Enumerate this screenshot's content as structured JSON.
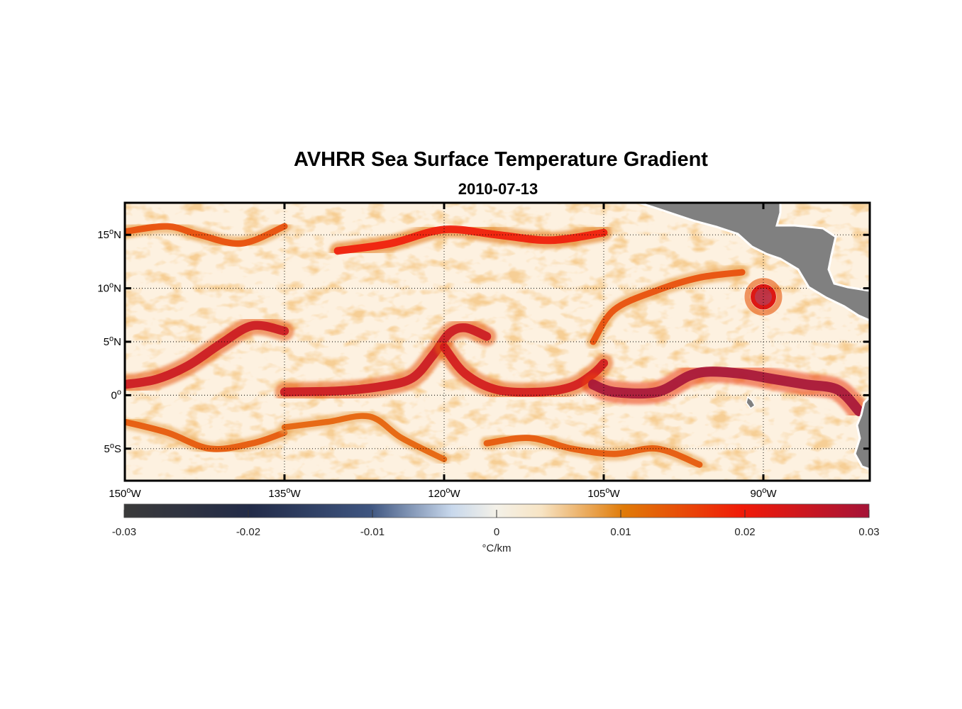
{
  "title": "AVHRR Sea Surface Temperature Gradient",
  "subtitle": "2010-07-13",
  "map": {
    "lon_range": [
      -150,
      -80
    ],
    "lat_range": [
      -8,
      18
    ],
    "lon_ticks": [
      {
        "value": -150,
        "num": "150",
        "deg": "o",
        "hemi": "W"
      },
      {
        "value": -135,
        "num": "135",
        "deg": "o",
        "hemi": "W"
      },
      {
        "value": -120,
        "num": "120",
        "deg": "o",
        "hemi": "W"
      },
      {
        "value": -105,
        "num": "105",
        "deg": "o",
        "hemi": "W"
      },
      {
        "value": -90,
        "num": "90",
        "deg": "o",
        "hemi": "W"
      }
    ],
    "lat_ticks": [
      {
        "value": 15,
        "num": "15",
        "deg": "o",
        "hemi": "N"
      },
      {
        "value": 10,
        "num": "10",
        "deg": "o",
        "hemi": "N"
      },
      {
        "value": 5,
        "num": "5",
        "deg": "o",
        "hemi": "N"
      },
      {
        "value": 0,
        "num": "0",
        "deg": "o",
        "hemi": ""
      },
      {
        "value": -5,
        "num": "5",
        "deg": "o",
        "hemi": "S"
      }
    ],
    "grid_lines": true,
    "land_color": "#808080",
    "fronts": [
      {
        "id": "equatorial-front",
        "strength": 0.025,
        "path": [
          [
            -150,
            1
          ],
          [
            -147,
            1.5
          ],
          [
            -144,
            2.8
          ],
          [
            -141,
            4.8
          ],
          [
            -138,
            6.5
          ],
          [
            -135,
            6.0
          ]
        ]
      },
      {
        "id": "equatorial-front-main",
        "strength": 0.025,
        "path": [
          [
            -135,
            0.3
          ],
          [
            -130,
            0.4
          ],
          [
            -126,
            0.8
          ],
          [
            -123,
            1.6
          ],
          [
            -121,
            3.8
          ],
          [
            -119.5,
            5.8
          ],
          [
            -118,
            6.3
          ],
          [
            -116,
            5.5
          ]
        ]
      },
      {
        "id": "tiw-front",
        "strength": 0.024,
        "path": [
          [
            -120,
            4.5
          ],
          [
            -118,
            2
          ],
          [
            -115,
            0.5
          ],
          [
            -111,
            0.3
          ],
          [
            -108,
            0.8
          ],
          [
            -106,
            2.0
          ],
          [
            -105,
            3.0
          ]
        ]
      },
      {
        "id": "cold-tongue-front",
        "strength": 0.03,
        "path": [
          [
            -106,
            1.0
          ],
          [
            -104,
            0.3
          ],
          [
            -100,
            0.3
          ],
          [
            -97,
            1.8
          ],
          [
            -95,
            2.2
          ],
          [
            -92,
            2.0
          ],
          [
            -89,
            1.5
          ],
          [
            -86,
            1.0
          ],
          [
            -83,
            0.5
          ],
          [
            -81,
            -1.5
          ]
        ]
      },
      {
        "id": "north-front-15n",
        "strength": 0.02,
        "path": [
          [
            -130,
            13.5
          ],
          [
            -125,
            14.2
          ],
          [
            -120,
            15.5
          ],
          [
            -115,
            15.0
          ],
          [
            -110,
            14.5
          ],
          [
            -105,
            15.2
          ]
        ]
      },
      {
        "id": "north-front-15n-west",
        "strength": 0.015,
        "path": [
          [
            -150,
            15.3
          ],
          [
            -146,
            15.8
          ],
          [
            -143,
            15.0
          ],
          [
            -139,
            14.2
          ],
          [
            -135,
            15.8
          ]
        ]
      },
      {
        "id": "south-front-west",
        "strength": 0.014,
        "path": [
          [
            -150,
            -2.5
          ],
          [
            -146,
            -3.5
          ],
          [
            -142,
            -5
          ],
          [
            -138,
            -4.5
          ],
          [
            -135,
            -3.5
          ]
        ]
      },
      {
        "id": "south-front-mid",
        "strength": 0.013,
        "path": [
          [
            -135,
            -3
          ],
          [
            -131,
            -2.5
          ],
          [
            -127,
            -2.0
          ],
          [
            -124,
            -4.0
          ],
          [
            -120,
            -6.0
          ]
        ]
      },
      {
        "id": "south-front-east",
        "strength": 0.014,
        "path": [
          [
            -116,
            -4.5
          ],
          [
            -112,
            -4.0
          ],
          [
            -108,
            -5.0
          ],
          [
            -104,
            -5.5
          ],
          [
            -100,
            -5.0
          ],
          [
            -96,
            -6.5
          ]
        ]
      },
      {
        "id": "front-8n",
        "strength": 0.015,
        "path": [
          [
            -106,
            5
          ],
          [
            -104,
            8
          ],
          [
            -100,
            9.8
          ],
          [
            -96,
            11
          ],
          [
            -92,
            11.5
          ]
        ]
      }
    ],
    "eddies": [
      {
        "id": "eddy-papagayo",
        "lon": -90,
        "lat": 9.2,
        "radius_deg": 1.0,
        "strength": 0.028
      }
    ]
  },
  "colorbar": {
    "label": "°C/km",
    "range": [
      -0.03,
      0.03
    ],
    "ticks": [
      {
        "value": -0.03,
        "label": "-0.03"
      },
      {
        "value": -0.02,
        "label": "-0.02"
      },
      {
        "value": -0.01,
        "label": "-0.01"
      },
      {
        "value": 0,
        "label": "0"
      },
      {
        "value": 0.01,
        "label": "0.01"
      },
      {
        "value": 0.02,
        "label": "0.02"
      },
      {
        "value": 0.03,
        "label": "0.03"
      }
    ],
    "colors": [
      "#3a3a3a",
      "#222b48",
      "#3e5580",
      "#c8d8ec",
      "#f7efd8",
      "#e07b08",
      "#f01a08",
      "#a51438"
    ]
  }
}
